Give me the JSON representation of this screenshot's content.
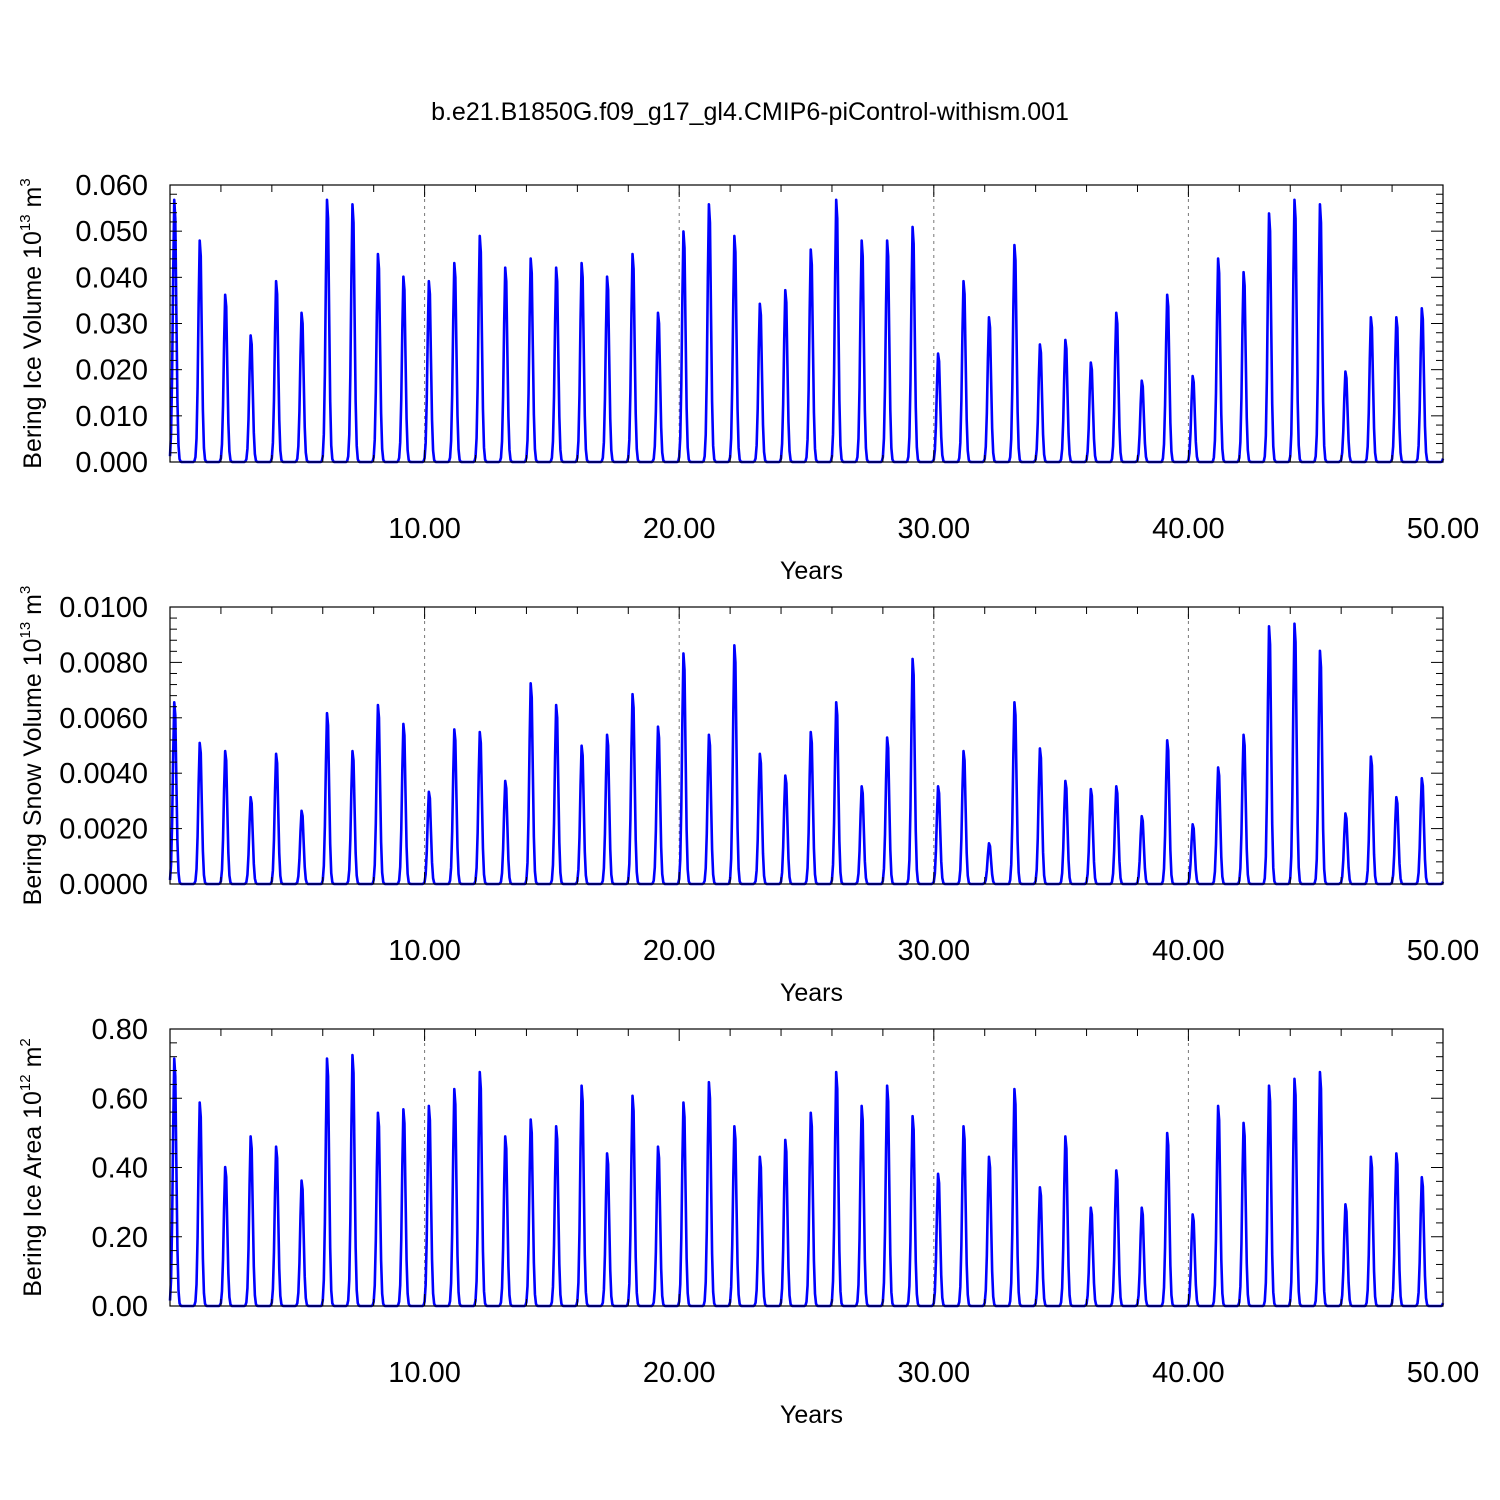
{
  "title": "b.e21.B1850G.f09_g17_gl4.CMIP6-piControl-withism.001",
  "colors": {
    "series": "#0000ff",
    "axis": "#000000",
    "reference_lines": "#777777"
  },
  "chart_data": [
    {
      "type": "line",
      "title": "",
      "xlabel": "Years",
      "ylabel_parts": {
        "prefix": "Bering Ice Volume 10",
        "exponent": "13",
        "unit": " m",
        "unit_exponent": "3"
      },
      "xlim": [
        0,
        50
      ],
      "ylim": [
        0,
        0.06
      ],
      "x_ticks": [
        10,
        20,
        30,
        40,
        50
      ],
      "x_tick_labels": [
        "10.00",
        "20.00",
        "30.00",
        "40.00",
        "50.00"
      ],
      "y_ticks": [
        0,
        0.01,
        0.02,
        0.03,
        0.04,
        0.05,
        0.06
      ],
      "y_tick_labels": [
        "0.000",
        "0.010",
        "0.020",
        "0.030",
        "0.040",
        "0.050",
        "0.060"
      ],
      "reference_lines_x": [
        10,
        20,
        30,
        40
      ],
      "grid": false,
      "legend": "none",
      "series": [
        {
          "annual_peaks": [
            0.058,
            0.049,
            0.037,
            0.028,
            0.04,
            0.033,
            0.058,
            0.057,
            0.046,
            0.041,
            0.04,
            0.044,
            0.05,
            0.043,
            0.045,
            0.043,
            0.044,
            0.041,
            0.046,
            0.033,
            0.051,
            0.057,
            0.05,
            0.035,
            0.038,
            0.047,
            0.058,
            0.049,
            0.049,
            0.052,
            0.024,
            0.04,
            0.032,
            0.048,
            0.026,
            0.027,
            0.022,
            0.033,
            0.018,
            0.037,
            0.019,
            0.045,
            0.042,
            0.055,
            0.058,
            0.057,
            0.02,
            0.032,
            0.032,
            0.034
          ]
        }
      ]
    },
    {
      "type": "line",
      "title": "",
      "xlabel": "Years",
      "ylabel_parts": {
        "prefix": "Bering Snow Volume 10",
        "exponent": "13",
        "unit": " m",
        "unit_exponent": "3"
      },
      "xlim": [
        0,
        50
      ],
      "ylim": [
        0,
        0.01
      ],
      "x_ticks": [
        10,
        20,
        30,
        40,
        50
      ],
      "x_tick_labels": [
        "10.00",
        "20.00",
        "30.00",
        "40.00",
        "50.00"
      ],
      "y_ticks": [
        0,
        0.002,
        0.004,
        0.006,
        0.008,
        0.01
      ],
      "y_tick_labels": [
        "0.0000",
        "0.0020",
        "0.0040",
        "0.0060",
        "0.0080",
        "0.0100"
      ],
      "reference_lines_x": [
        10,
        20,
        30,
        40
      ],
      "grid": false,
      "legend": "none",
      "series": [
        {
          "annual_peaks": [
            0.0067,
            0.0052,
            0.0049,
            0.0032,
            0.0048,
            0.0027,
            0.0063,
            0.0049,
            0.0066,
            0.0059,
            0.0034,
            0.0057,
            0.0056,
            0.0038,
            0.0074,
            0.0066,
            0.0051,
            0.0055,
            0.007,
            0.0058,
            0.0085,
            0.0055,
            0.0088,
            0.0048,
            0.004,
            0.0056,
            0.0067,
            0.0036,
            0.0054,
            0.0083,
            0.0036,
            0.0049,
            0.0015,
            0.0067,
            0.005,
            0.0038,
            0.0035,
            0.0036,
            0.0025,
            0.0053,
            0.0022,
            0.0043,
            0.0055,
            0.0095,
            0.0096,
            0.0086,
            0.0026,
            0.0047,
            0.0032,
            0.0039
          ]
        }
      ]
    },
    {
      "type": "line",
      "title": "",
      "xlabel": "Years",
      "ylabel_parts": {
        "prefix": "Bering Ice Area 10",
        "exponent": "12",
        "unit": " m",
        "unit_exponent": "2"
      },
      "xlim": [
        0,
        50
      ],
      "ylim": [
        0,
        0.8
      ],
      "x_ticks": [
        10,
        20,
        30,
        40,
        50
      ],
      "x_tick_labels": [
        "10.00",
        "20.00",
        "30.00",
        "40.00",
        "50.00"
      ],
      "y_ticks": [
        0,
        0.2,
        0.4,
        0.6,
        0.8
      ],
      "y_tick_labels": [
        "0.00",
        "0.20",
        "0.40",
        "0.60",
        "0.80"
      ],
      "reference_lines_x": [
        10,
        30,
        40
      ],
      "grid": false,
      "legend": "none",
      "series": [
        {
          "annual_peaks": [
            0.73,
            0.6,
            0.41,
            0.5,
            0.47,
            0.37,
            0.73,
            0.74,
            0.57,
            0.58,
            0.59,
            0.64,
            0.69,
            0.5,
            0.55,
            0.53,
            0.65,
            0.45,
            0.62,
            0.47,
            0.6,
            0.66,
            0.53,
            0.44,
            0.49,
            0.57,
            0.69,
            0.59,
            0.65,
            0.56,
            0.39,
            0.53,
            0.44,
            0.64,
            0.35,
            0.5,
            0.29,
            0.4,
            0.29,
            0.51,
            0.27,
            0.59,
            0.54,
            0.65,
            0.67,
            0.69,
            0.3,
            0.44,
            0.45,
            0.38
          ]
        }
      ]
    }
  ]
}
